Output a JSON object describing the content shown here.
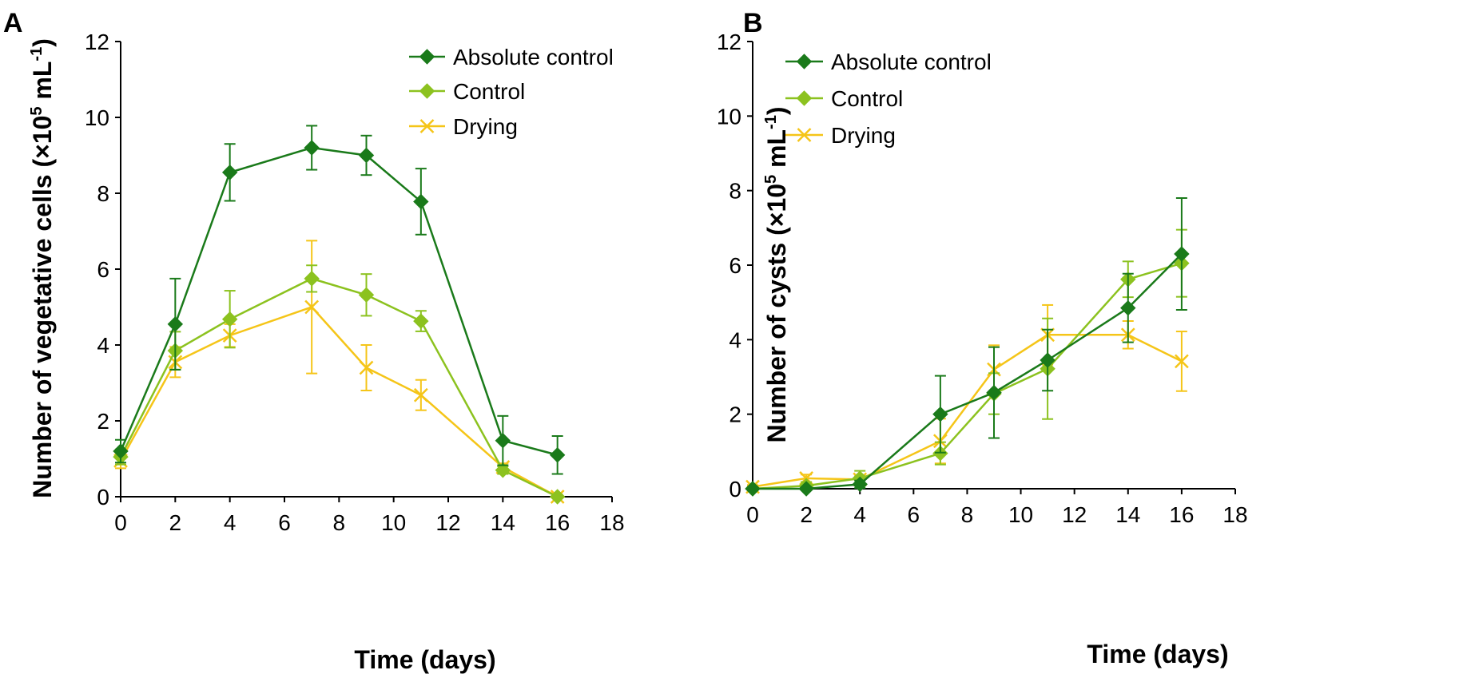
{
  "panel_a": {
    "letter": "A"
  },
  "panel_b": {
    "letter": "B"
  },
  "colors": {
    "absolute_control": "#1a7a1a",
    "control": "#8cc21f",
    "drying": "#f5c518"
  },
  "chart_data": [
    {
      "type": "line",
      "panel": "A",
      "title": "",
      "xlabel": "Time (days)",
      "ylabel_main": "Number of vegetative cells (×10",
      "ylabel_exp": "5",
      "ylabel_unit": " mL",
      "ylabel_unit_exp": "-1",
      "ylabel_close": ")",
      "xlim": [
        0,
        18
      ],
      "ylim": [
        0,
        12
      ],
      "xticks": [
        "0",
        "2",
        "4",
        "6",
        "8",
        "10",
        "12",
        "14",
        "16",
        "18"
      ],
      "yticks": [
        "0",
        "2",
        "4",
        "6",
        "8",
        "10",
        "12"
      ],
      "legend_position": "top-right",
      "series": [
        {
          "name": "Absolute control",
          "marker": "diamond",
          "x": [
            0,
            2,
            4,
            7,
            9,
            11,
            14,
            16
          ],
          "y": [
            1.2,
            4.55,
            8.55,
            9.2,
            9.0,
            7.78,
            1.48,
            1.1
          ],
          "err": [
            0.3,
            1.2,
            0.75,
            0.58,
            0.52,
            0.87,
            0.65,
            0.5
          ]
        },
        {
          "name": "Control",
          "marker": "diamond",
          "x": [
            0,
            2,
            4,
            7,
            9,
            11,
            14,
            16
          ],
          "y": [
            1.05,
            3.85,
            4.68,
            5.75,
            5.32,
            4.63,
            0.7,
            0.0
          ],
          "err": [
            0.2,
            0.5,
            0.75,
            0.35,
            0.55,
            0.27,
            0.1,
            0.05
          ]
        },
        {
          "name": "Drying",
          "marker": "x",
          "x": [
            0,
            2,
            4,
            7,
            9,
            11,
            14,
            16
          ],
          "y": [
            0.95,
            3.55,
            4.25,
            5.0,
            3.4,
            2.68,
            0.78,
            0.0
          ],
          "err": [
            0.2,
            0.4,
            0.3,
            1.75,
            0.6,
            0.4,
            0.1,
            0.05
          ]
        }
      ]
    },
    {
      "type": "line",
      "panel": "B",
      "title": "",
      "xlabel": "Time (days)",
      "ylabel_main": "Number of cysts (×10",
      "ylabel_exp": "5",
      "ylabel_unit": " mL",
      "ylabel_unit_exp": "-1",
      "ylabel_close": ")",
      "xlim": [
        0,
        18
      ],
      "ylim": [
        0,
        12
      ],
      "xticks": [
        "0",
        "2",
        "4",
        "6",
        "8",
        "10",
        "12",
        "14",
        "16",
        "18"
      ],
      "yticks": [
        "0",
        "2",
        "4",
        "6",
        "8",
        "10",
        "12"
      ],
      "legend_position": "top-left",
      "series": [
        {
          "name": "Absolute control",
          "marker": "diamond",
          "x": [
            0,
            2,
            4,
            7,
            9,
            11,
            14,
            16
          ],
          "y": [
            0.0,
            0.0,
            0.12,
            2.0,
            2.58,
            3.45,
            4.85,
            6.3
          ],
          "err": [
            0.05,
            0.05,
            0.1,
            1.03,
            1.22,
            0.82,
            0.92,
            1.5
          ]
        },
        {
          "name": "Control",
          "marker": "diamond",
          "x": [
            0,
            2,
            4,
            7,
            9,
            11,
            14,
            16
          ],
          "y": [
            0.0,
            0.08,
            0.28,
            0.95,
            2.55,
            3.22,
            5.62,
            6.05
          ],
          "err": [
            0.05,
            0.1,
            0.2,
            0.3,
            0.55,
            1.35,
            0.48,
            0.9
          ]
        },
        {
          "name": "Drying",
          "marker": "x",
          "x": [
            0,
            2,
            4,
            7,
            9,
            11,
            14,
            16
          ],
          "y": [
            0.05,
            0.28,
            0.25,
            1.28,
            3.2,
            4.13,
            4.13,
            3.42
          ],
          "err": [
            0.05,
            0.1,
            0.1,
            0.6,
            0.65,
            0.8,
            0.37,
            0.8
          ]
        }
      ]
    }
  ]
}
